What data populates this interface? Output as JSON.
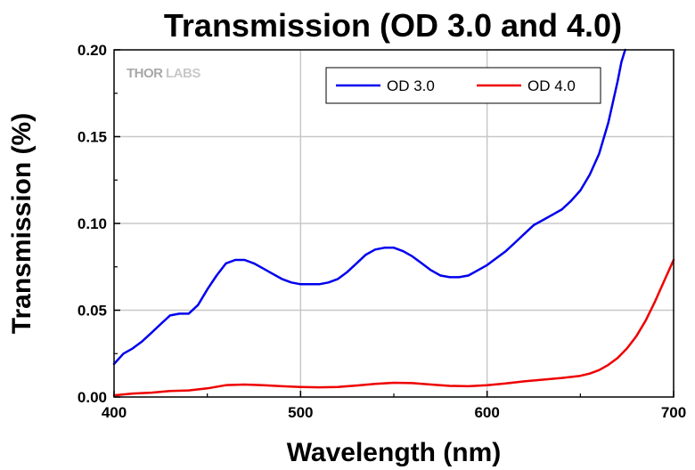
{
  "chart_data": {
    "type": "line",
    "title": "Transmission (OD 3.0 and 4.0)",
    "xlabel": "Wavelength (nm)",
    "ylabel": "Transmission (%)",
    "xlim": [
      400,
      700
    ],
    "ylim": [
      0,
      0.2
    ],
    "x_ticks": [
      "400",
      "500",
      "600",
      "700"
    ],
    "y_ticks": [
      "0.00",
      "0.05",
      "0.10",
      "0.15",
      "0.20"
    ],
    "grid": true,
    "legend_position": "top-right",
    "watermark": {
      "left": "THOR",
      "right": "LABS"
    },
    "series": [
      {
        "name": "OD 3.0",
        "color": "#0000ee",
        "x": [
          400,
          405,
          410,
          415,
          420,
          425,
          430,
          435,
          440,
          445,
          450,
          455,
          460,
          465,
          470,
          475,
          480,
          485,
          490,
          495,
          500,
          505,
          510,
          515,
          520,
          525,
          530,
          535,
          540,
          545,
          550,
          555,
          560,
          565,
          570,
          575,
          580,
          585,
          590,
          595,
          600,
          605,
          610,
          615,
          620,
          625,
          630,
          635,
          640,
          645,
          650,
          655,
          660,
          665,
          670,
          672,
          674
        ],
        "y": [
          0.019,
          0.025,
          0.028,
          0.032,
          0.037,
          0.042,
          0.047,
          0.048,
          0.048,
          0.053,
          0.062,
          0.07,
          0.077,
          0.079,
          0.079,
          0.077,
          0.074,
          0.071,
          0.068,
          0.066,
          0.065,
          0.065,
          0.065,
          0.066,
          0.068,
          0.072,
          0.077,
          0.082,
          0.085,
          0.086,
          0.086,
          0.084,
          0.081,
          0.077,
          0.073,
          0.07,
          0.069,
          0.069,
          0.07,
          0.073,
          0.076,
          0.08,
          0.084,
          0.089,
          0.094,
          0.099,
          0.102,
          0.105,
          0.108,
          0.113,
          0.119,
          0.128,
          0.14,
          0.158,
          0.182,
          0.193,
          0.2
        ]
      },
      {
        "name": "OD 4.0",
        "color": "#ee0000",
        "x": [
          400,
          410,
          420,
          430,
          440,
          450,
          460,
          470,
          480,
          490,
          500,
          510,
          520,
          530,
          540,
          550,
          560,
          570,
          580,
          590,
          600,
          610,
          620,
          630,
          640,
          650,
          655,
          660,
          665,
          670,
          675,
          680,
          685,
          690,
          695,
          700
        ],
        "y": [
          0.001,
          0.002,
          0.0025,
          0.0035,
          0.0038,
          0.005,
          0.0068,
          0.0072,
          0.0068,
          0.0062,
          0.0058,
          0.0056,
          0.0058,
          0.0066,
          0.0076,
          0.0082,
          0.008,
          0.0072,
          0.0064,
          0.0062,
          0.0068,
          0.0078,
          0.009,
          0.01,
          0.011,
          0.0122,
          0.0135,
          0.0155,
          0.0185,
          0.0225,
          0.028,
          0.035,
          0.044,
          0.055,
          0.067,
          0.079
        ]
      }
    ]
  }
}
